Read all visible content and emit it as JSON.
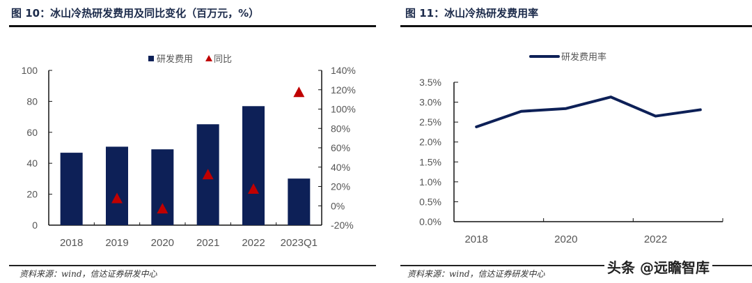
{
  "left": {
    "title": "图 10：冰山冷热研发费用及同比变化（百万元，%）",
    "source": "资料来源：wind，信达证券研发中心"
  },
  "right": {
    "title": "图 11：冰山冷热研发费用率",
    "source": "资料来源：wind，信达证券研发中心"
  },
  "watermark": "头条 @远瞻智库",
  "chart_data": [
    {
      "type": "bar",
      "categories": [
        "2018",
        "2019",
        "2020",
        "2021",
        "2022",
        "2023Q1"
      ],
      "series": [
        {
          "name": "研发费用",
          "type": "bar",
          "axis": "left",
          "color": "#0d2057",
          "values": [
            46.8,
            50.7,
            49.0,
            65.2,
            76.9,
            30.1
          ]
        },
        {
          "name": "同比",
          "type": "scatter",
          "marker": "triangle",
          "axis": "right",
          "color": "#c00000",
          "values": [
            null,
            7.0,
            -3.6,
            31.7,
            16.8,
            116.8
          ]
        }
      ],
      "ylim": [
        0,
        100
      ],
      "yticks": [
        "0",
        "20",
        "40",
        "60",
        "80",
        "100"
      ],
      "y2lim": [
        -20,
        140
      ],
      "y2ticks": [
        "-20%",
        "0%",
        "20%",
        "40%",
        "60%",
        "80%",
        "100%",
        "120%",
        "140%"
      ],
      "legend": "top"
    },
    {
      "type": "line",
      "x": [
        "2018",
        "2019",
        "2020",
        "2021",
        "2022",
        "2023"
      ],
      "xticklabels": [
        "2018",
        "2020",
        "2022"
      ],
      "series": [
        {
          "name": "研发费用率",
          "color": "#0d2057",
          "values": [
            2.38,
            2.77,
            2.84,
            3.13,
            2.65,
            2.81
          ]
        }
      ],
      "ylim": [
        0,
        3.5
      ],
      "yticks": [
        "0.0%",
        "0.5%",
        "1.0%",
        "1.5%",
        "2.0%",
        "2.5%",
        "3.0%",
        "3.5%"
      ],
      "legend": "top"
    }
  ]
}
